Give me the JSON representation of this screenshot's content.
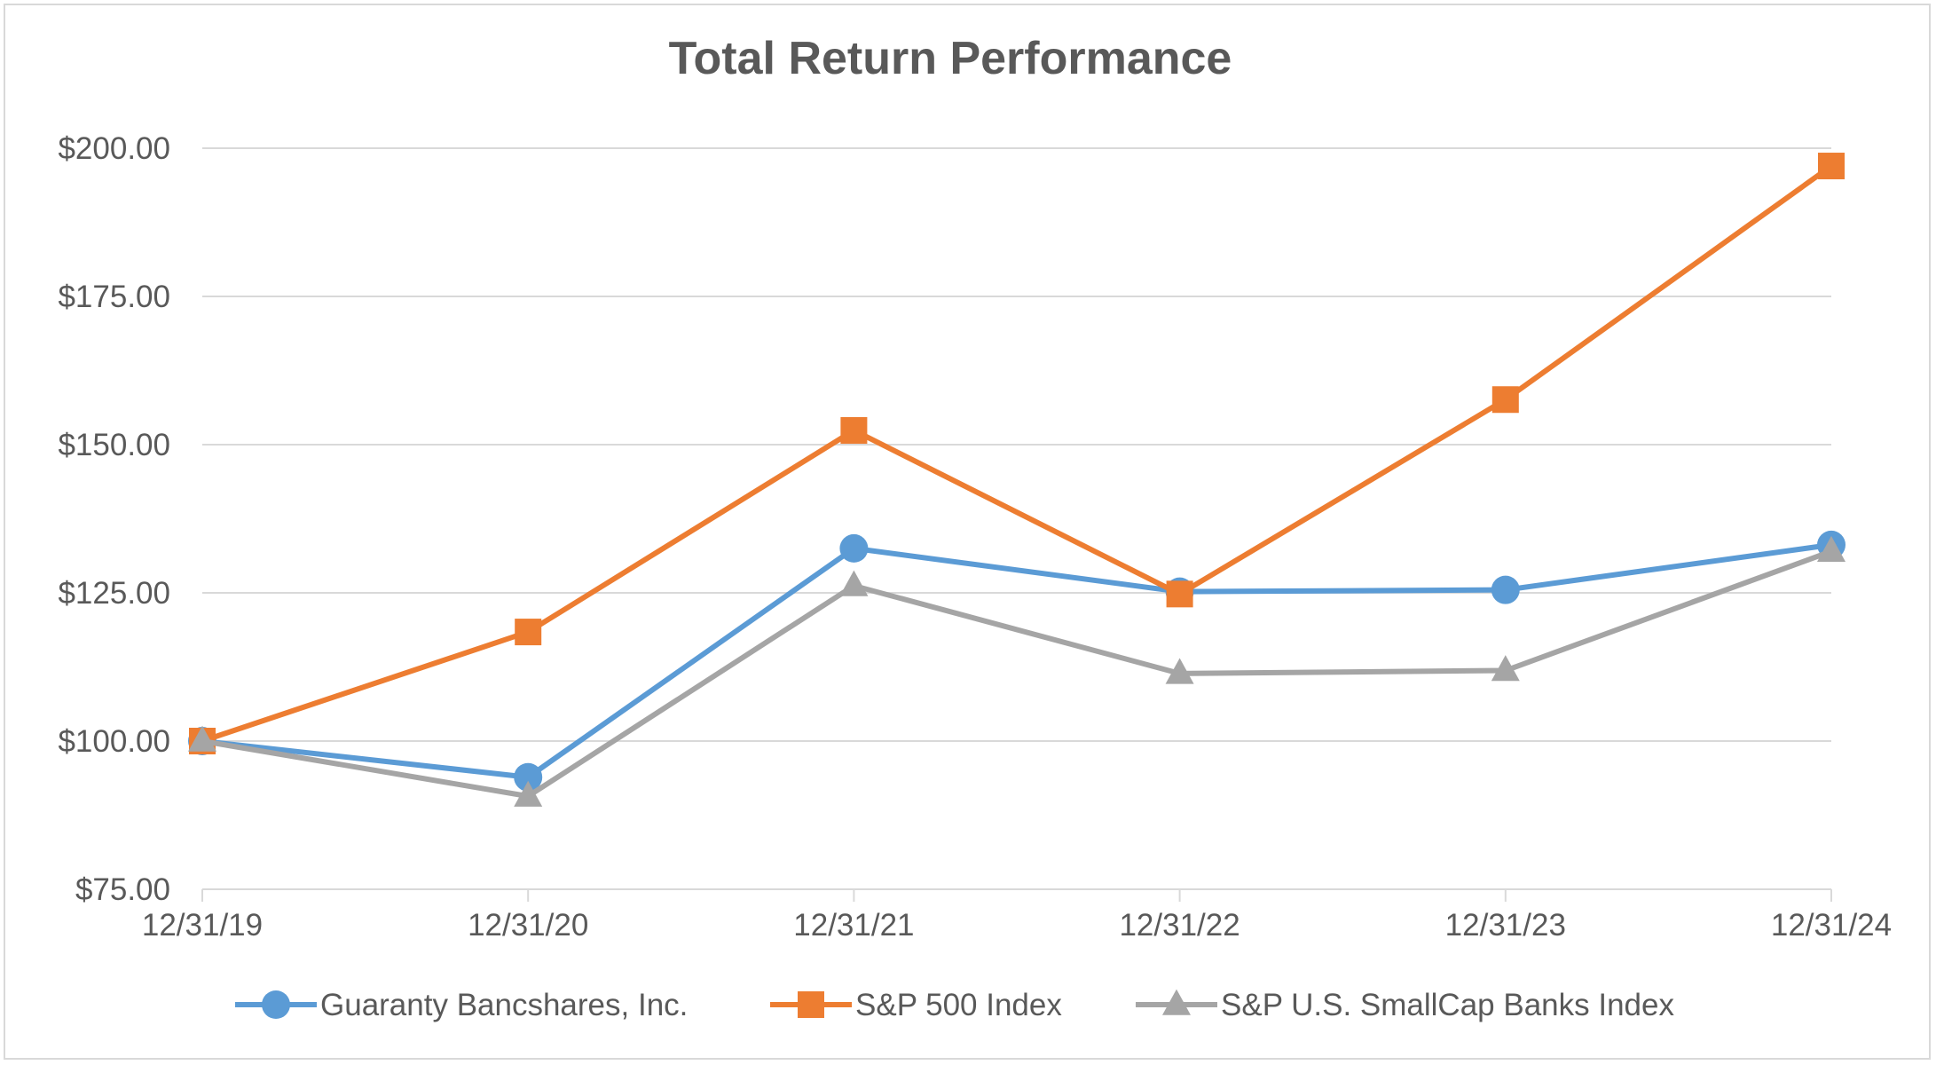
{
  "chart_data": {
    "type": "line",
    "title": "Total Return Performance",
    "xlabel": "",
    "ylabel": "",
    "categories": [
      "12/31/19",
      "12/31/20",
      "12/31/21",
      "12/31/22",
      "12/31/23",
      "12/31/24"
    ],
    "ylim": [
      75,
      200
    ],
    "yticks": [
      75,
      100,
      125,
      150,
      175,
      200
    ],
    "ytick_labels": [
      "$75.00",
      "$100.00",
      "$125.00",
      "$150.00",
      "$175.00",
      "$200.00"
    ],
    "grid": true,
    "legend_position": "bottom",
    "series": [
      {
        "name": "Guaranty Bancshares, Inc.",
        "color": "#5b9bd5",
        "marker": "circle",
        "values": [
          100.0,
          93.9,
          132.5,
          125.2,
          125.5,
          133.1
        ]
      },
      {
        "name": "S&P 500 Index",
        "color": "#ed7d31",
        "marker": "square",
        "values": [
          100.0,
          118.4,
          152.4,
          124.8,
          157.6,
          197.0
        ]
      },
      {
        "name": "S&P U.S. SmallCap Banks Index",
        "color": "#a5a5a5",
        "marker": "triangle",
        "values": [
          100.0,
          90.7,
          126.2,
          111.4,
          111.9,
          132.0
        ]
      }
    ]
  }
}
